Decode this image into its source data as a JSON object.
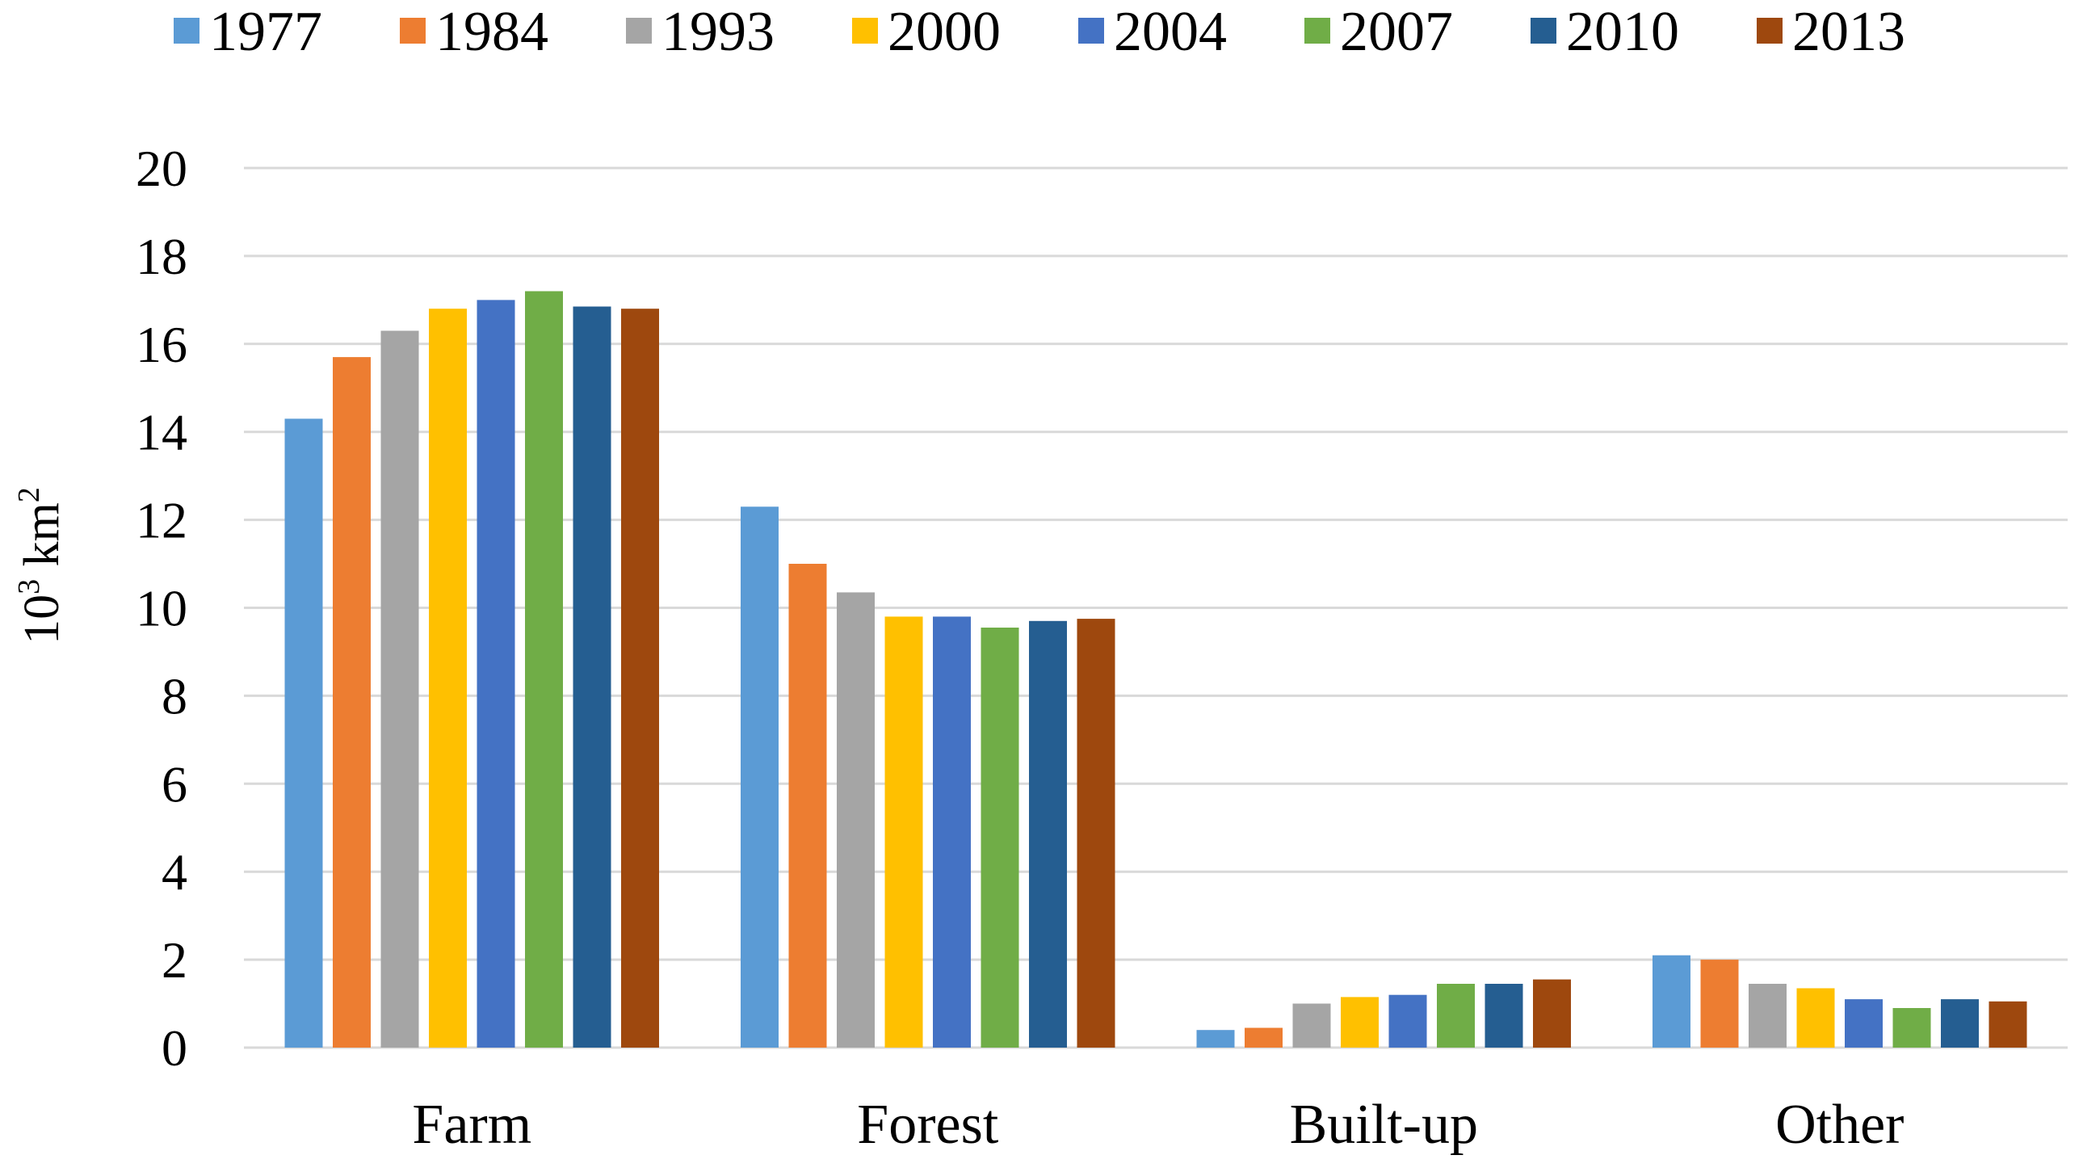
{
  "chart_data": {
    "type": "bar",
    "title": "",
    "xlabel": "",
    "ylabel": "10",
    "ylabel_superscript": "3",
    "ylabel_unit": " km",
    "ylabel_unit_superscript": "2",
    "ylim": [
      0,
      20
    ],
    "yticks": [
      0,
      2,
      4,
      6,
      8,
      10,
      12,
      14,
      16,
      18,
      20
    ],
    "grid": true,
    "legend_position": "top",
    "categories": [
      "Farm",
      "Forest",
      "Built-up",
      "Other"
    ],
    "series": [
      {
        "name": "1977",
        "color": "#5B9BD5",
        "values": [
          14.3,
          12.3,
          0.4,
          2.1
        ]
      },
      {
        "name": "1984",
        "color": "#ED7D31",
        "values": [
          15.7,
          11.0,
          0.45,
          2.0
        ]
      },
      {
        "name": "1993",
        "color": "#A5A5A5",
        "values": [
          16.3,
          10.35,
          1.0,
          1.45
        ]
      },
      {
        "name": "2000",
        "color": "#FFC000",
        "values": [
          16.8,
          9.8,
          1.15,
          1.35
        ]
      },
      {
        "name": "2004",
        "color": "#4472C4",
        "values": [
          17.0,
          9.8,
          1.2,
          1.1
        ]
      },
      {
        "name": "2007",
        "color": "#70AD47",
        "values": [
          17.2,
          9.55,
          1.45,
          0.9
        ]
      },
      {
        "name": "2010",
        "color": "#255E91",
        "values": [
          16.85,
          9.7,
          1.45,
          1.1
        ]
      },
      {
        "name": "2013",
        "color": "#9E480E",
        "values": [
          16.8,
          9.75,
          1.55,
          1.05
        ]
      }
    ],
    "colors": {
      "grid": "#D9D9D9",
      "text": "#000000",
      "background": "#FFFFFF"
    }
  }
}
